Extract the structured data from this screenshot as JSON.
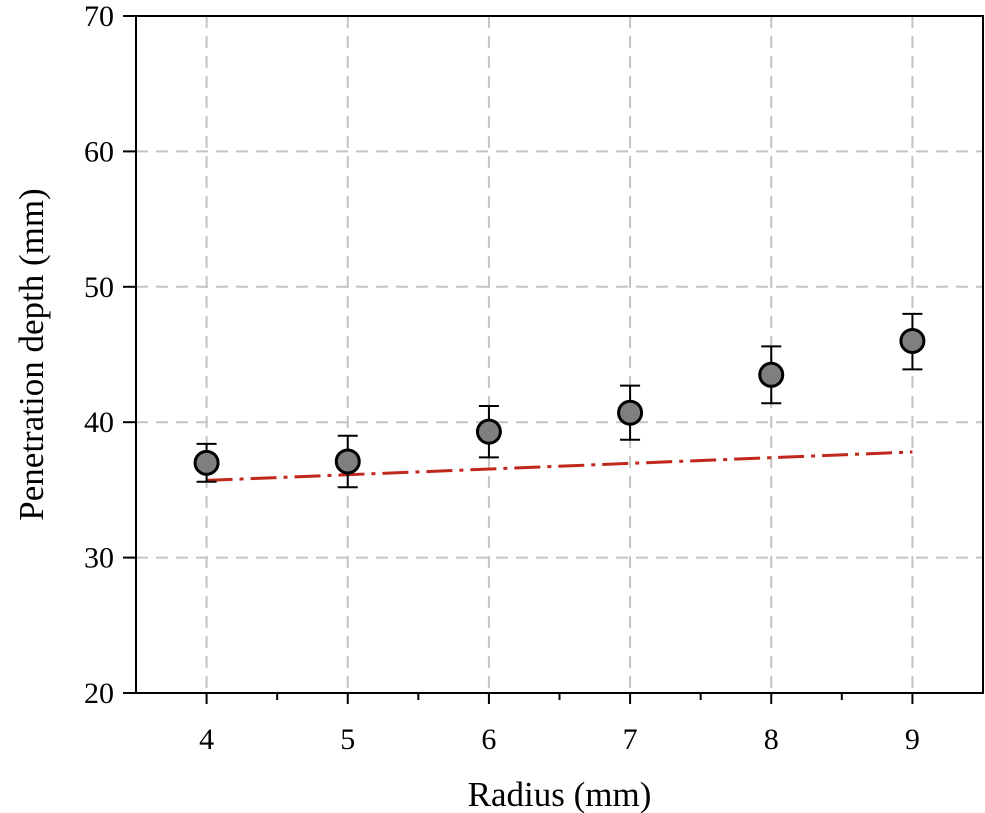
{
  "chart_data": {
    "type": "scatter",
    "title": "",
    "xlabel": "Radius (mm)",
    "ylabel": "Penetration depth (mm)",
    "xlim": [
      3.5,
      9.5
    ],
    "ylim": [
      20,
      70
    ],
    "xticks": [
      4,
      5,
      6,
      7,
      8,
      9
    ],
    "yticks": [
      20,
      30,
      40,
      50,
      60,
      70
    ],
    "x_minor_ticks": [
      4.5,
      5.5,
      6.5,
      7.5,
      8.5
    ],
    "grid": true,
    "series": [
      {
        "kind": "scatter_with_errorbars",
        "x": [
          4,
          5,
          6,
          7,
          8,
          9
        ],
        "y": [
          37.0,
          37.1,
          39.3,
          40.7,
          43.5,
          46.0
        ],
        "yerr_upper": [
          38.4,
          39.0,
          41.2,
          42.7,
          45.6,
          48.0
        ],
        "yerr_lower": [
          35.6,
          35.2,
          37.4,
          38.7,
          41.4,
          43.9
        ],
        "marker_color": "#7f7f7f",
        "marker_edge_color": "#000000"
      },
      {
        "kind": "line",
        "style": "dash-dot",
        "x": [
          4,
          9
        ],
        "y": [
          35.7,
          37.8
        ],
        "color": "#c0281e"
      }
    ]
  }
}
